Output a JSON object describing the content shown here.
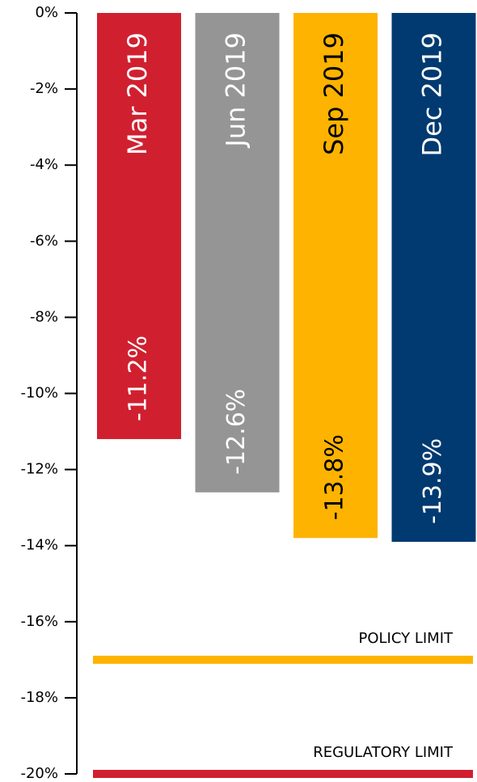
{
  "chart_data": {
    "type": "bar",
    "categories": [
      "Mar 2019",
      "Jun 2019",
      "Sep 2019",
      "Dec 2019"
    ],
    "values": [
      -11.2,
      -12.6,
      -13.8,
      -13.9
    ],
    "value_labels": [
      "-11.2%",
      "-12.6%",
      "-13.8%",
      "-13.9%"
    ],
    "colors": [
      "#d02030",
      "#959595",
      "#fdb300",
      "#003a70"
    ],
    "label_colors": [
      "#ffffff",
      "#ffffff",
      "#000000",
      "#ffffff"
    ],
    "ylim": [
      -20,
      0
    ],
    "yticks": [
      {
        "value": 0,
        "label": "0%"
      },
      {
        "value": -2,
        "label": "-2%"
      },
      {
        "value": -4,
        "label": "-4%"
      },
      {
        "value": -6,
        "label": "-6%"
      },
      {
        "value": -8,
        "label": "-8%"
      },
      {
        "value": -10,
        "label": "-10%"
      },
      {
        "value": -12,
        "label": "-12%"
      },
      {
        "value": -14,
        "label": "-14%"
      },
      {
        "value": -16,
        "label": "-16%"
      },
      {
        "value": -18,
        "label": "-18%"
      },
      {
        "value": -20,
        "label": "-20%"
      }
    ],
    "reference_lines": [
      {
        "label": "POLICY LIMIT",
        "value": -17,
        "color": "#fdb300"
      },
      {
        "label": "REGULATORY LIMIT",
        "value": -20,
        "color": "#d02030"
      }
    ]
  }
}
